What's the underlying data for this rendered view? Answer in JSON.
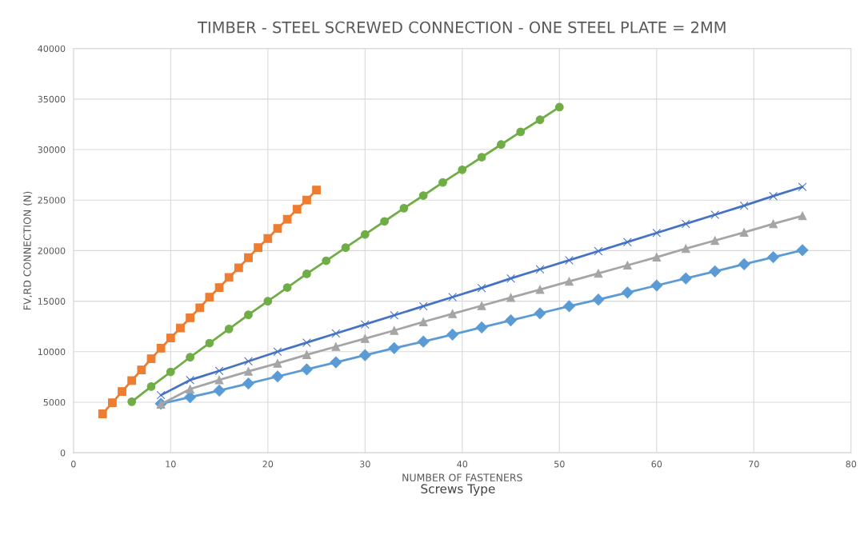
{
  "chart_data": {
    "type": "line",
    "title": "TIMBER - STEEL SCREWED CONNECTION - ONE STEEL PLATE = 2MM",
    "xlabel": "NUMBER OF FASTENERS",
    "ylabel": "FV,RD CONNECTION (N)",
    "annotations": [
      "Screws Type"
    ],
    "xlim": [
      0,
      80
    ],
    "xticks": [
      0,
      10,
      20,
      30,
      40,
      50,
      60,
      70,
      80
    ],
    "ylim": [
      0,
      40000
    ],
    "yticks": [
      0,
      5000,
      10000,
      15000,
      20000,
      25000,
      30000,
      35000,
      40000
    ],
    "grid": true,
    "series": [
      {
        "color": "#5b9bd5",
        "marker": "diamond",
        "x": [
          9,
          12,
          15,
          18,
          21,
          24,
          27,
          30,
          33,
          36,
          39,
          42,
          45,
          48,
          51,
          54,
          57,
          60,
          63,
          66,
          69,
          72,
          75
        ],
        "values": [
          4850,
          5500,
          6150,
          6850,
          7550,
          8250,
          8950,
          9650,
          10350,
          11000,
          11700,
          12400,
          13100,
          13800,
          14500,
          15150,
          15850,
          16550,
          17250,
          17950,
          18650,
          19350,
          20050
        ]
      },
      {
        "color": "#a5a5a5",
        "marker": "triangle",
        "x": [
          9,
          12,
          15,
          18,
          21,
          24,
          27,
          30,
          33,
          36,
          39,
          42,
          45,
          48,
          51,
          54,
          57,
          60,
          63,
          66,
          69,
          72,
          75
        ],
        "values": [
          4800,
          6300,
          7200,
          8050,
          8850,
          9700,
          10500,
          11300,
          12100,
          12950,
          13750,
          14550,
          15350,
          16150,
          16950,
          17750,
          18550,
          19350,
          20200,
          21000,
          21800,
          22650,
          23450
        ]
      },
      {
        "color": "#4472c4",
        "marker": "cross",
        "x": [
          9,
          12,
          15,
          18,
          21,
          24,
          27,
          30,
          33,
          36,
          39,
          42,
          45,
          48,
          51,
          54,
          57,
          60,
          63,
          66,
          69,
          72,
          75
        ],
        "values": [
          5700,
          7200,
          8100,
          9050,
          10000,
          10900,
          11800,
          12700,
          13600,
          14500,
          15400,
          16300,
          17250,
          18150,
          19050,
          19950,
          20850,
          21750,
          22650,
          23550,
          24450,
          25400,
          26300
        ]
      },
      {
        "color": "#70ad47",
        "marker": "circle",
        "x": [
          6,
          8,
          10,
          12,
          14,
          16,
          18,
          20,
          22,
          24,
          26,
          28,
          30,
          32,
          34,
          36,
          38,
          40,
          42,
          44,
          46,
          48,
          50
        ],
        "values": [
          5050,
          6550,
          8000,
          9450,
          10850,
          12250,
          13650,
          15000,
          16350,
          17700,
          19000,
          20300,
          21600,
          22900,
          24200,
          25450,
          26750,
          28000,
          29250,
          30500,
          31750,
          32950,
          34200
        ]
      },
      {
        "color": "#ed7d31",
        "marker": "square",
        "x": [
          3,
          4,
          5,
          6,
          7,
          8,
          9,
          10,
          11,
          12,
          13,
          14,
          15,
          16,
          17,
          18,
          19,
          20,
          21,
          22,
          23,
          24,
          25
        ],
        "values": [
          3850,
          4950,
          6050,
          7150,
          8200,
          9300,
          10350,
          11350,
          12350,
          13350,
          14350,
          15400,
          16350,
          17350,
          18300,
          19300,
          20300,
          21200,
          22200,
          23100,
          24100,
          25000,
          26000
        ]
      }
    ]
  }
}
